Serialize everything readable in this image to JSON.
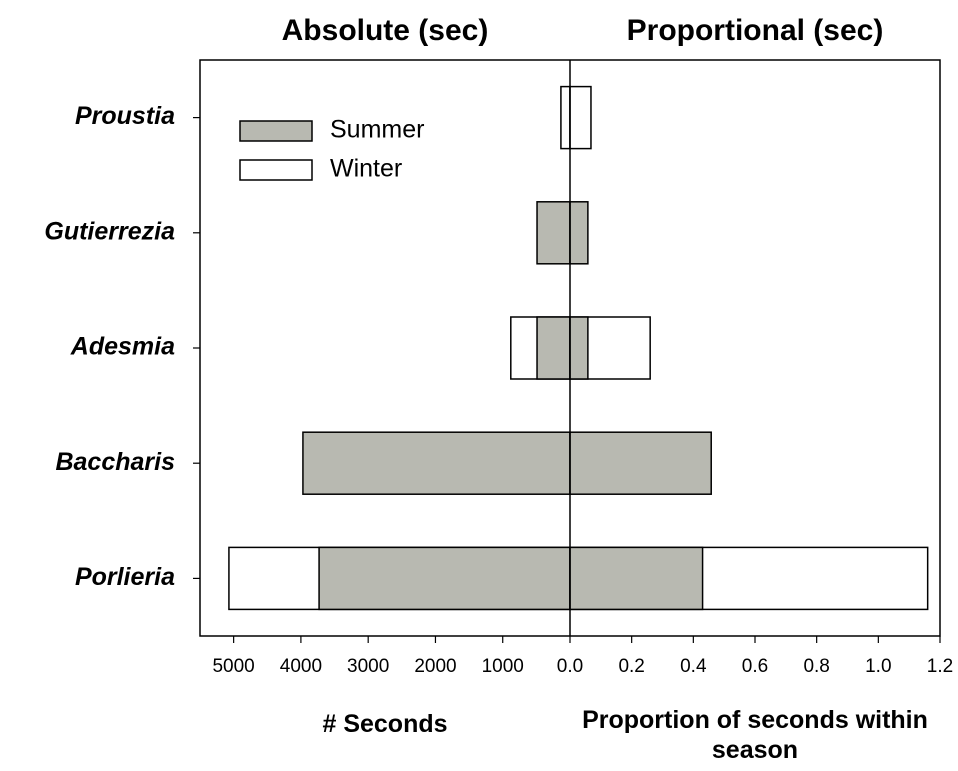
{
  "chart_data": {
    "type": "bar",
    "orientation": "horizontal",
    "categories": [
      "Proustia",
      "Gutierrezia",
      "Adesmia",
      "Baccharis",
      "Porlieria"
    ],
    "panels": [
      {
        "title": "Absolute (sec)",
        "xlabel": "# Seconds",
        "reversed": true,
        "xlim": [
          0,
          5500
        ],
        "xticks": [
          1000,
          2000,
          3000,
          4000,
          5000
        ],
        "series": [
          {
            "name": "Summer",
            "color": "#b8b9b1",
            "values": [
              null,
              490,
              490,
              3970,
              3730
            ]
          },
          {
            "name": "Winter",
            "color": "#ffffff",
            "values": [
              135,
              null,
              880,
              null,
              5070
            ]
          }
        ]
      },
      {
        "title": "Proportional (sec)",
        "xlabel": "Proportion of seconds within season",
        "reversed": false,
        "xlim": [
          0,
          1.2
        ],
        "xticks": [
          {
            "value": 0,
            "label": "0.0"
          },
          0.2,
          0.4,
          0.6,
          0.8,
          {
            "value": 1,
            "label": "1.0"
          },
          1.2
        ],
        "series": [
          {
            "name": "Summer",
            "color": "#b8b9b1",
            "values": [
              null,
              0.058,
              0.058,
              0.458,
              0.43
            ]
          },
          {
            "name": "Winter",
            "color": "#ffffff",
            "values": [
              0.068,
              null,
              0.26,
              null,
              1.16
            ]
          }
        ]
      }
    ]
  }
}
